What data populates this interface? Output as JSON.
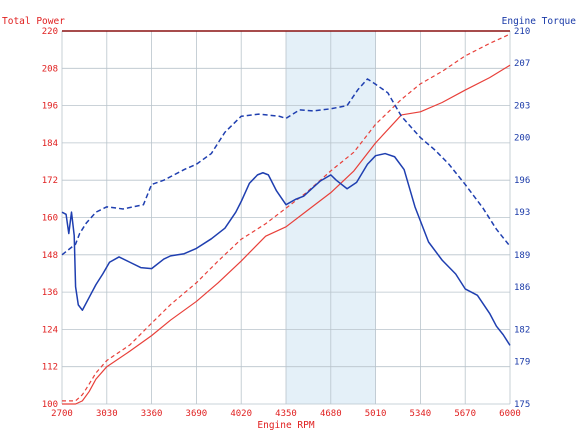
{
  "chart_data": {
    "type": "line",
    "xlabel": "Engine RPM",
    "ylabel_left": "Total Power",
    "ylabel_right": "Engine Torque",
    "xlim": [
      2700,
      6000
    ],
    "ylim_left": [
      100,
      220
    ],
    "ylim_right": [
      175,
      210
    ],
    "x_ticks": [
      2700,
      3030,
      3360,
      3690,
      4020,
      4350,
      4680,
      5010,
      5340,
      5670,
      6000
    ],
    "y_ticks_left": [
      100,
      112,
      124,
      136,
      148,
      160,
      172,
      184,
      196,
      208,
      220
    ],
    "y_ticks_right": [
      175,
      179,
      182,
      186,
      189,
      193,
      196,
      200,
      203,
      207,
      210
    ],
    "grid": true,
    "highlight_band_x": [
      4350,
      5010
    ],
    "colors": {
      "power": "#e8403a",
      "torque": "#1f3fb0",
      "left_axis_text": "#e02020",
      "right_axis_text": "#1a3aa8",
      "x_axis_text": "#e02020",
      "top_line": "#8a1010",
      "highlight_band": "#e4f0f8"
    },
    "series": [
      {
        "axis": "left",
        "style": "dashed",
        "x": [
          2700,
          2800,
          2850,
          2880,
          2950,
          3030,
          3200,
          3360,
          3500,
          3690,
          3850,
          4020,
          4200,
          4350,
          4500,
          4680,
          4850,
          5010,
          5200,
          5340,
          5500,
          5670,
          5850,
          6000
        ],
        "values": [
          101,
          101,
          103,
          105,
          110,
          114,
          119,
          126,
          132,
          139,
          146,
          153,
          158,
          163,
          168,
          175,
          181,
          190,
          198,
          203,
          207,
          212,
          216,
          219
        ]
      },
      {
        "axis": "left",
        "style": "solid",
        "x": [
          2700,
          2800,
          2850,
          2900,
          2950,
          3030,
          3200,
          3360,
          3500,
          3690,
          3850,
          4020,
          4200,
          4350,
          4500,
          4680,
          4850,
          5010,
          5200,
          5340,
          5500,
          5670,
          5850,
          6000
        ],
        "values": [
          100,
          100,
          101,
          104,
          108,
          112,
          117,
          122,
          127,
          133,
          139,
          146,
          154,
          157,
          162,
          168,
          175,
          184,
          193,
          194,
          197,
          201,
          205,
          209
        ]
      },
      {
        "axis": "right",
        "style": "dashed",
        "x": [
          2700,
          2800,
          2830,
          2880,
          2950,
          3030,
          3150,
          3300,
          3360,
          3450,
          3600,
          3690,
          3800,
          3900,
          4020,
          4150,
          4300,
          4350,
          4450,
          4550,
          4680,
          4800,
          4880,
          4950,
          5010,
          5100,
          5200,
          5340,
          5450,
          5550,
          5670,
          5800,
          5900,
          6000
        ],
        "values": [
          189,
          190,
          191,
          192,
          193,
          193.5,
          193.3,
          193.7,
          195.6,
          196,
          197,
          197.5,
          198.5,
          200.5,
          202,
          202.2,
          202,
          201.8,
          202.6,
          202.5,
          202.7,
          203,
          204.5,
          205.5,
          205,
          204.2,
          202,
          200,
          198.8,
          197.5,
          195.6,
          193.4,
          191.4,
          189.8
        ]
      },
      {
        "axis": "right",
        "style": "solid",
        "x": [
          2700,
          2730,
          2750,
          2770,
          2790,
          2800,
          2820,
          2850,
          2900,
          2950,
          3000,
          3050,
          3120,
          3200,
          3280,
          3360,
          3450,
          3500,
          3600,
          3690,
          3800,
          3900,
          3980,
          4020,
          4080,
          4140,
          4180,
          4220,
          4280,
          4350,
          4420,
          4480,
          4540,
          4600,
          4680,
          4720,
          4800,
          4870,
          4950,
          5010,
          5080,
          5150,
          5220,
          5300,
          5400,
          5500,
          5600,
          5670,
          5760,
          5850,
          5900,
          5950,
          6000
        ],
        "values": [
          193,
          192.8,
          191,
          193,
          190.8,
          186,
          184.3,
          183.8,
          185,
          186.2,
          187.2,
          188.3,
          188.8,
          188.3,
          187.8,
          187.7,
          188.6,
          188.9,
          189.1,
          189.6,
          190.5,
          191.5,
          193,
          194,
          195.7,
          196.5,
          196.7,
          196.5,
          195,
          193.7,
          194.2,
          194.5,
          195.2,
          195.9,
          196.5,
          196,
          195.2,
          195.8,
          197.5,
          198.3,
          198.5,
          198.2,
          197,
          193.5,
          190.2,
          188.5,
          187.2,
          185.8,
          185.2,
          183.5,
          182.3,
          181.5,
          180.5
        ]
      }
    ]
  }
}
